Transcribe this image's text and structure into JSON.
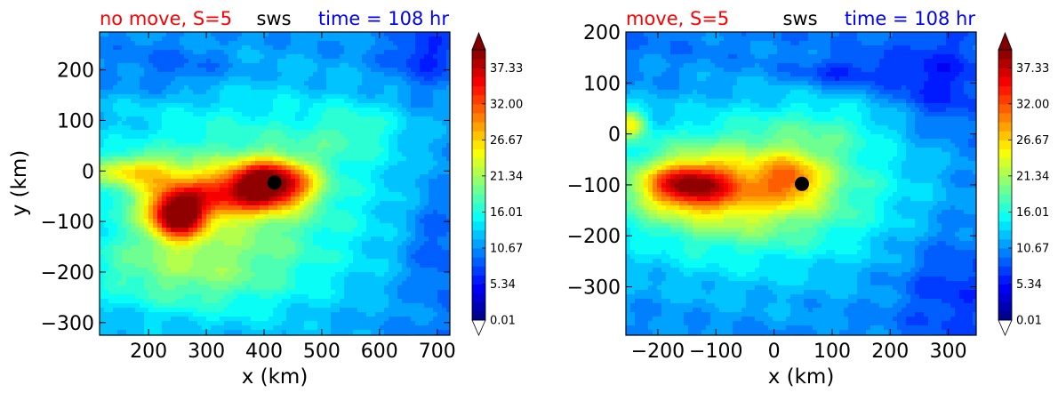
{
  "colors": {
    "title_left": "#ff0000",
    "title_mid": "#000000",
    "title_right": "#0000ff",
    "marker": "#000000"
  },
  "colorbar": {
    "tick_labels": [
      "0.01",
      "5.34",
      "10.67",
      "16.01",
      "21.34",
      "26.67",
      "32.00",
      "37.33"
    ],
    "min": 0.01,
    "max": 40.0,
    "extend": "both",
    "colormap": "jet"
  },
  "chart_data": [
    {
      "type": "heatmap",
      "title_left": "no move, S=5",
      "title_mid": "sws",
      "title_right": "time = 108 hr",
      "xlabel": "x (km)",
      "ylabel": "y (km)",
      "xlim": [
        115,
        722
      ],
      "ylim": [
        -325,
        275
      ],
      "xticks": [
        200,
        300,
        400,
        500,
        600,
        700
      ],
      "yticks": [
        200,
        100,
        0,
        -100,
        -200,
        -300
      ],
      "xtick_labels": [
        "200",
        "300",
        "400",
        "500",
        "600",
        "700"
      ],
      "ytick_labels": [
        "200",
        "100",
        "0",
        "−100",
        "−200",
        "−300"
      ],
      "center_marker": {
        "x": 418,
        "y": -23
      },
      "field": {
        "background": 10,
        "blobs": [
          {
            "x": 410,
            "y": -25,
            "rx": 70,
            "ry": 45,
            "v": 24
          },
          {
            "x": 250,
            "y": -90,
            "rx": 45,
            "ry": 45,
            "v": 22
          },
          {
            "x": 300,
            "y": -50,
            "rx": 110,
            "ry": 50,
            "v": 12
          },
          {
            "x": 170,
            "y": 0,
            "rx": 80,
            "ry": 30,
            "v": 10
          },
          {
            "x": 350,
            "y": -60,
            "rx": 280,
            "ry": 230,
            "v": 9
          },
          {
            "x": 250,
            "y": -200,
            "rx": 180,
            "ry": 80,
            "v": 5
          },
          {
            "x": 560,
            "y": 80,
            "rx": 90,
            "ry": 60,
            "v": 4
          },
          {
            "x": 250,
            "y": 200,
            "rx": 100,
            "ry": 50,
            "v": -3
          },
          {
            "x": 680,
            "y": 230,
            "rx": 60,
            "ry": 60,
            "v": -4
          },
          {
            "x": 700,
            "y": -150,
            "rx": 60,
            "ry": 120,
            "v": -3
          }
        ]
      }
    },
    {
      "type": "heatmap",
      "title_left": "move, S=5",
      "title_mid": "sws",
      "title_right": "time = 108 hr",
      "xlabel": "x (km)",
      "ylabel": "",
      "xlim": [
        -255,
        348
      ],
      "ylim": [
        -395,
        200
      ],
      "xticks": [
        -200,
        -100,
        0,
        100,
        200,
        300
      ],
      "yticks": [
        200,
        100,
        0,
        -100,
        -200,
        -300
      ],
      "xtick_labels": [
        "−200",
        "−100",
        "0",
        "100",
        "200",
        "300"
      ],
      "ytick_labels": [
        "200",
        "100",
        "0",
        "−100",
        "−200",
        "−300"
      ],
      "center_marker": {
        "x": 48,
        "y": -98
      },
      "field": {
        "background": 9,
        "blobs": [
          {
            "x": -150,
            "y": -100,
            "rx": 70,
            "ry": 40,
            "v": 15
          },
          {
            "x": -100,
            "y": -110,
            "rx": 150,
            "ry": 70,
            "v": 7
          },
          {
            "x": 30,
            "y": -85,
            "rx": 50,
            "ry": 45,
            "v": 8
          },
          {
            "x": -30,
            "y": -100,
            "rx": 230,
            "ry": 120,
            "v": 7
          },
          {
            "x": -50,
            "y": -130,
            "rx": 330,
            "ry": 230,
            "v": 6
          },
          {
            "x": -250,
            "y": 20,
            "rx": 30,
            "ry": 30,
            "v": 12
          },
          {
            "x": 100,
            "y": 20,
            "rx": 120,
            "ry": 60,
            "v": 3
          },
          {
            "x": 120,
            "y": 120,
            "rx": 80,
            "ry": 30,
            "v": -4
          },
          {
            "x": 280,
            "y": 100,
            "rx": 80,
            "ry": 80,
            "v": -4
          },
          {
            "x": 300,
            "y": -300,
            "rx": 80,
            "ry": 100,
            "v": -3
          }
        ]
      }
    }
  ]
}
